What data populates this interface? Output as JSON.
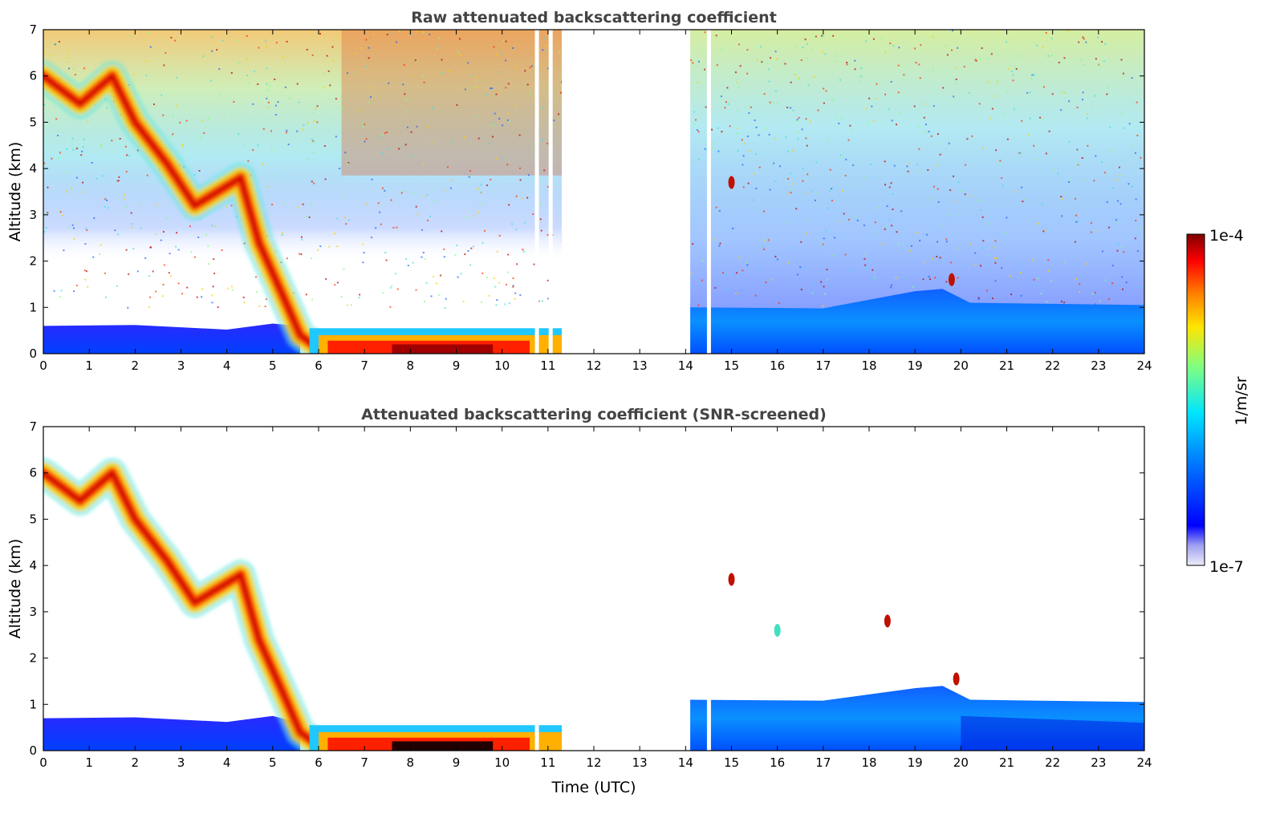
{
  "chart_data": [
    {
      "type": "heatmap",
      "title": "Raw attenuated backscattering coefficient",
      "xlabel": "",
      "ylabel": "Altitude (km)",
      "xlim": [
        0,
        24
      ],
      "ylim": [
        0,
        7
      ],
      "x_ticks": [
        "0",
        "1",
        "2",
        "3",
        "4",
        "5",
        "6",
        "7",
        "8",
        "9",
        "10",
        "11",
        "12",
        "13",
        "14",
        "15",
        "16",
        "17",
        "18",
        "19",
        "20",
        "21",
        "22",
        "23",
        "24"
      ],
      "y_ticks": [
        "0",
        "1",
        "2",
        "3",
        "4",
        "5",
        "6",
        "7"
      ],
      "data_gap_utc": [
        11.3,
        14.1
      ],
      "missing_profiles_utc": [
        10.75,
        11.05,
        14.5
      ],
      "features": [
        {
          "kind": "boundary layer top",
          "time_utc": [
            0,
            5
          ],
          "altitude_km": 0.6
        },
        {
          "kind": "descending cloud layer",
          "time_utc": [
            0,
            6.0
          ],
          "altitude_km": [
            6.0,
            0.1
          ],
          "color": "red"
        },
        {
          "kind": "low dense layer",
          "time_utc": [
            6,
            11.3
          ],
          "altitude_km": 0.3,
          "color": "dark red"
        },
        {
          "kind": "boundary layer top",
          "time_utc": [
            14.1,
            24
          ],
          "altitude_km": 1.0
        },
        {
          "kind": "small cloud",
          "time_utc": 19.8,
          "altitude_km": 1.6
        }
      ]
    },
    {
      "type": "heatmap",
      "title": "Attenuated backscattering coefficient (SNR-screened)",
      "xlabel": "Time (UTC)",
      "ylabel": "Altitude (km)",
      "xlim": [
        0,
        24
      ],
      "ylim": [
        0,
        7
      ],
      "x_ticks": [
        "0",
        "1",
        "2",
        "3",
        "4",
        "5",
        "6",
        "7",
        "8",
        "9",
        "10",
        "11",
        "12",
        "13",
        "14",
        "15",
        "16",
        "17",
        "18",
        "19",
        "20",
        "21",
        "22",
        "23",
        "24"
      ],
      "y_ticks": [
        "0",
        "1",
        "2",
        "3",
        "4",
        "5",
        "6",
        "7"
      ],
      "data_gap_utc": [
        11.3,
        14.1
      ],
      "features": [
        {
          "kind": "descending cloud layer",
          "time_utc": [
            0,
            6.0
          ],
          "altitude_km": [
            6.0,
            0.1
          ]
        },
        {
          "kind": "boundary layer",
          "time_utc": [
            0,
            5.2
          ],
          "altitude_km": 0.7
        },
        {
          "kind": "boundary layer",
          "time_utc": [
            14.1,
            24
          ],
          "altitude_km": 1.1
        },
        {
          "kind": "small cloud",
          "time_utc": 15.0,
          "altitude_km": 3.7
        },
        {
          "kind": "small cloud",
          "time_utc": 16.0,
          "altitude_km": 2.6
        },
        {
          "kind": "small cloud",
          "time_utc": 19.9,
          "altitude_km": 1.55
        }
      ]
    }
  ],
  "colorbar": {
    "label": "1/m/sr",
    "max_label": "1e-4",
    "min_label": "1e-7",
    "scale": "log",
    "colormap": [
      "#ececf8",
      "#0000ff",
      "#0080ff",
      "#00e5ff",
      "#80ff80",
      "#ffe500",
      "#ff8000",
      "#ff0000",
      "#7f0000"
    ]
  }
}
